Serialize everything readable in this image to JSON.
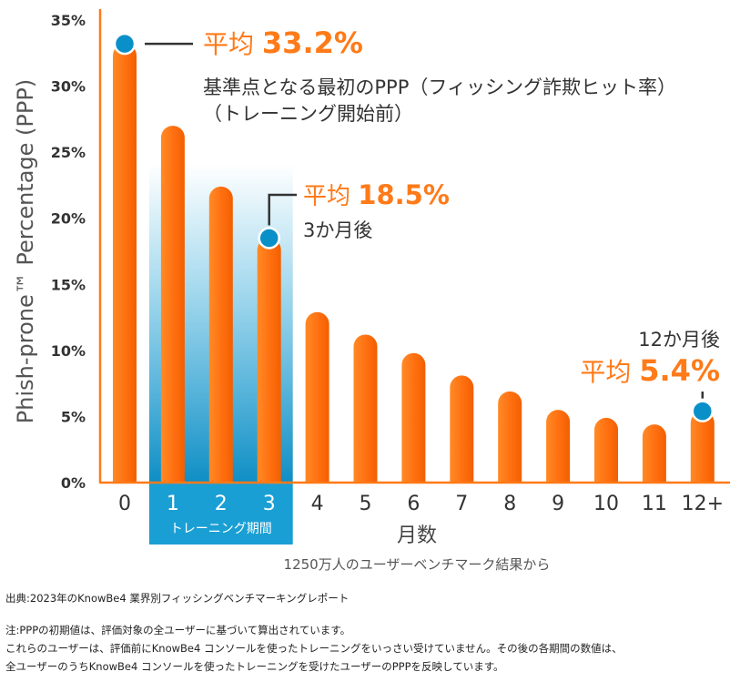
{
  "chart_data": {
    "type": "bar",
    "ylabel": "Phish-prone™ Percentage (PPP)",
    "xlabel": "月数",
    "subtitle": "1250万人のユーザーベンチマーク結果から",
    "categories": [
      "0",
      "1",
      "2",
      "3",
      "4",
      "5",
      "6",
      "7",
      "8",
      "9",
      "10",
      "11",
      "12+"
    ],
    "values": [
      33.2,
      27.0,
      22.4,
      18.5,
      12.9,
      11.2,
      9.8,
      8.1,
      6.9,
      5.5,
      4.9,
      4.4,
      5.4
    ],
    "ylim": [
      0,
      35
    ],
    "yticks": [
      "0%",
      "5%",
      "10%",
      "15%",
      "20%",
      "25%",
      "30%",
      "35%"
    ],
    "grid": false,
    "bar_color": "#ff7a18",
    "marker_color": "#0a90c8",
    "training_color": "#1a9fd4",
    "training_period": {
      "categories": [
        "1",
        "2",
        "3"
      ],
      "label": "トレーニング期間"
    },
    "annotations": [
      {
        "category": "0",
        "value": 33.2,
        "prefix": "平均",
        "value_text": "33.2%",
        "lines": [
          "基準点となる最初のPPP（フィッシング詐欺ヒット率）",
          "（トレーニング開始前）"
        ]
      },
      {
        "category": "3",
        "value": 18.5,
        "prefix": "平均",
        "value_text": "18.5%",
        "lines": [
          "3か月後"
        ]
      },
      {
        "category": "12+",
        "value": 5.4,
        "prefix": "平均",
        "value_text": "5.4%",
        "lines": [
          "12か月後"
        ]
      }
    ]
  },
  "footnotes": {
    "source": "出典:2023年のKnowBe4 業界別フィッシングベンチマーキングレポート",
    "note1": "注:PPPの初期値は、評価対象の全ユーザーに基づいて算出されています。",
    "note2": "これらのユーザーは、評価前にKnowBe4 コンソールを使ったトレーニングをいっさい受けていません。その後の各期間の数値は、",
    "note3": "全ユーザーのうちKnowBe4 コンソールを使ったトレーニングを受けたユーザーのPPPを反映しています。"
  }
}
